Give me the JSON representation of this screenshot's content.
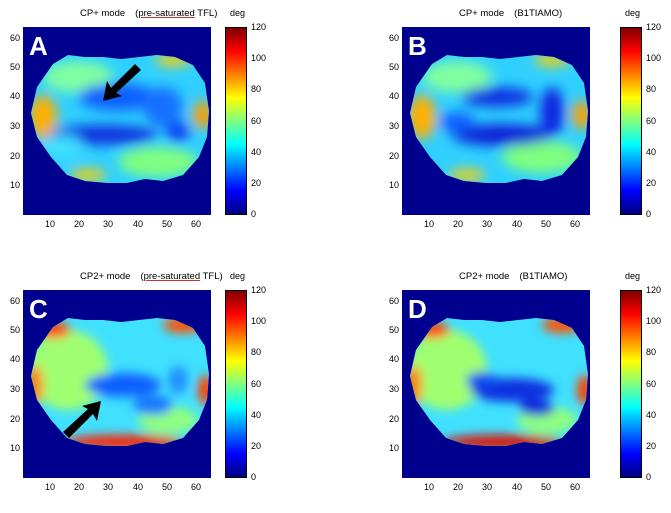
{
  "panels": [
    {
      "letter": "A",
      "mode": "CP+ mode",
      "paren_open": "(",
      "method_ul": "pre-saturated",
      "method_rest": " TFL)",
      "arrow": true
    },
    {
      "letter": "B",
      "mode": "CP+ mode",
      "paren_open": "",
      "method_ul": "",
      "method_rest": "(B1TIAMO)",
      "arrow": false
    },
    {
      "letter": "C",
      "mode": "CP2+ mode",
      "paren_open": "(",
      "method_ul": "pre-saturated",
      "method_rest": " TFL)",
      "arrow": true
    },
    {
      "letter": "D",
      "mode": "CP2+ mode",
      "paren_open": "",
      "method_ul": "",
      "method_rest": "(B1TIAMO)",
      "arrow": false
    }
  ],
  "y_ticks": [
    "60",
    "50",
    "40",
    "30",
    "20",
    "10"
  ],
  "x_ticks": [
    "10",
    "20",
    "30",
    "40",
    "50",
    "60"
  ],
  "colorbar": {
    "unit": "deg",
    "ticks": [
      "120",
      "100",
      "80",
      "60",
      "40",
      "20",
      "0"
    ],
    "range": [
      0,
      120
    ]
  },
  "colors": {
    "background": "#00008f",
    "arrow": "#000000"
  }
}
